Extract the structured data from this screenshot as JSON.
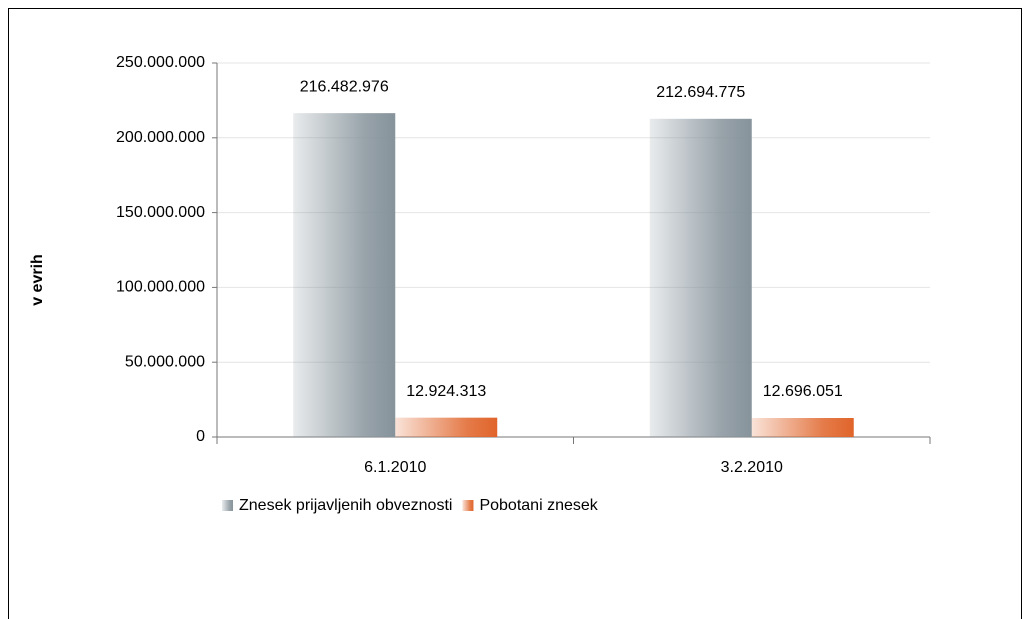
{
  "chart_data": {
    "type": "bar",
    "y_label": "v  evrih",
    "categories": [
      "6.1.2010",
      "3.2.2010"
    ],
    "series": [
      {
        "name": "Znesek prijavljenih obveznosti",
        "color": "#86939b",
        "values": [
          216482976,
          212694775
        ],
        "value_labels": [
          "216.482.976",
          "212.694.775"
        ]
      },
      {
        "name": "Pobotani znesek",
        "color": "#e0642a",
        "values": [
          12924313,
          12696051
        ],
        "value_labels": [
          "12.924.313",
          "12.696.051"
        ]
      }
    ],
    "ylim": [
      0,
      250000000
    ],
    "yticks": [
      0,
      {
        "value": 50000000,
        "label": "50.000.000"
      },
      {
        "value": 100000000,
        "label": "100.000.000"
      },
      {
        "value": 150000000,
        "label": "150.000.000"
      },
      {
        "value": 200000000,
        "label": "200.000.000"
      },
      {
        "value": 250000000,
        "label": "250.000.000"
      }
    ],
    "grid": true,
    "legend": "bottom"
  }
}
